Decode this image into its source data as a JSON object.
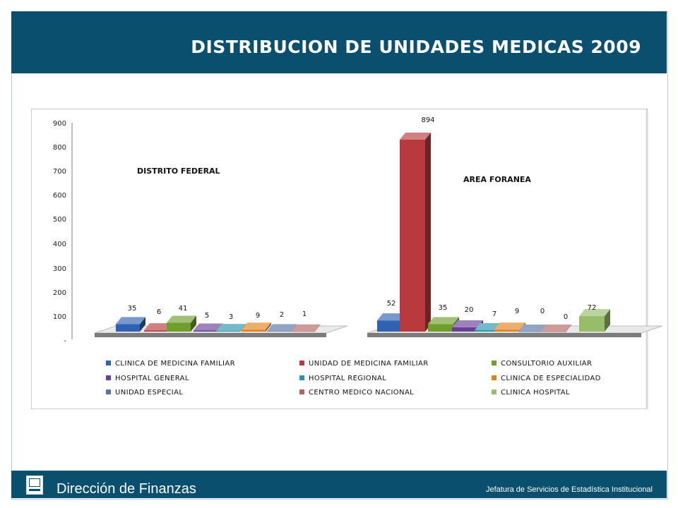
{
  "header": {
    "title": "DISTRIBUCION DE UNIDADES MEDICAS 2009"
  },
  "footer": {
    "title": "Dirección de Finanzas",
    "subtitle": "Jefatura de Servicios de Estadística Institucional"
  },
  "colors": {
    "header_bg": "#0a4f6e",
    "series": [
      "#2f62b3",
      "#b83a3d",
      "#6f9e2c",
      "#6a3f96",
      "#2a95ad",
      "#e0821e",
      "#5873a4",
      "#b06563",
      "#97bd6a"
    ]
  },
  "chart_data": {
    "type": "bar",
    "title": "",
    "y_ticks": [
      "900",
      "800",
      "700",
      "600",
      "500",
      "400",
      "300",
      "200",
      "100",
      "-"
    ],
    "ylim": [
      0,
      900
    ],
    "legend_position": "bottom",
    "series_names": [
      "CLINICA DE MEDICINA FAMILIAR",
      "UNIDAD DE MEDICINA FAMILIAR",
      "CONSULTORIO AUXILIAR",
      "HOSPITAL GENERAL",
      "HOSPITAL REGIONAL",
      "CLINICA DE ESPECIALIDAD",
      "UNIDAD ESPECIAL",
      "CENTRO MEDICO NACIONAL",
      "CLINICA HOSPITAL"
    ],
    "groups": [
      {
        "name": "DISTRITO FEDERAL",
        "values": [
          35,
          6,
          41,
          5,
          3,
          9,
          2,
          1,
          null
        ],
        "labels": [
          "35",
          "6",
          "41",
          "5",
          "3",
          "9",
          "2",
          "1",
          null
        ]
      },
      {
        "name": "AREA FORANEA",
        "values": [
          52,
          894,
          35,
          20,
          7,
          9,
          0,
          0,
          72
        ],
        "labels": [
          "52",
          "894",
          "35",
          "20",
          "7",
          "9",
          "0",
          "0",
          "72"
        ]
      }
    ]
  }
}
